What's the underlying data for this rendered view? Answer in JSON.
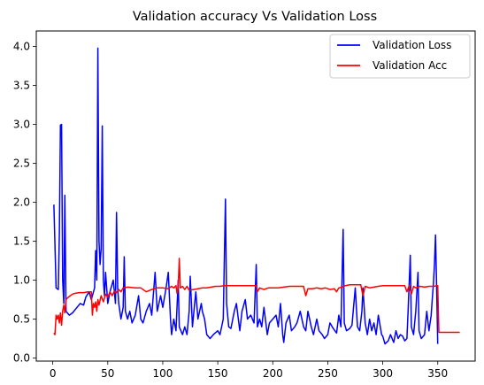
{
  "chart_data": {
    "type": "line",
    "title": "Validation accuracy Vs Validation Loss",
    "xlabel": "",
    "ylabel": "",
    "xlim": [
      -15,
      384
    ],
    "ylim": [
      -0.04,
      4.2
    ],
    "xticks": [
      0,
      50,
      100,
      150,
      200,
      250,
      300,
      350
    ],
    "xtick_labels": [
      "0",
      "50",
      "100",
      "150",
      "200",
      "250",
      "300",
      "350"
    ],
    "yticks": [
      0.0,
      0.5,
      1.0,
      1.5,
      2.0,
      2.5,
      3.0,
      3.5,
      4.0
    ],
    "ytick_labels": [
      "0.0",
      "0.5",
      "1.0",
      "1.5",
      "2.0",
      "2.5",
      "3.0",
      "3.5",
      "4.0"
    ],
    "grid": false,
    "legend_position": "top-right",
    "series": [
      {
        "name": "Validation Loss",
        "color": "#0000ff",
        "points": [
          [
            1,
            1.97
          ],
          [
            3,
            0.9
          ],
          [
            5,
            0.88
          ],
          [
            6,
            1.6
          ],
          [
            7,
            2.99
          ],
          [
            8,
            3.0
          ],
          [
            9,
            1.0
          ],
          [
            10,
            0.7
          ],
          [
            11,
            2.09
          ],
          [
            12,
            0.6
          ],
          [
            15,
            0.55
          ],
          [
            18,
            0.58
          ],
          [
            22,
            0.65
          ],
          [
            25,
            0.7
          ],
          [
            28,
            0.68
          ],
          [
            30,
            0.78
          ],
          [
            33,
            0.85
          ],
          [
            35,
            0.75
          ],
          [
            38,
            0.9
          ],
          [
            39,
            1.38
          ],
          [
            40,
            1.0
          ],
          [
            41,
            3.98
          ],
          [
            42,
            1.5
          ],
          [
            43,
            1.2
          ],
          [
            44,
            1.4
          ],
          [
            45,
            2.98
          ],
          [
            46,
            1.0
          ],
          [
            47,
            0.8
          ],
          [
            48,
            1.1
          ],
          [
            50,
            0.7
          ],
          [
            52,
            0.85
          ],
          [
            55,
            1.0
          ],
          [
            57,
            0.7
          ],
          [
            58,
            1.87
          ],
          [
            59,
            0.9
          ],
          [
            60,
            0.7
          ],
          [
            62,
            0.5
          ],
          [
            64,
            0.65
          ],
          [
            65,
            1.3
          ],
          [
            66,
            0.6
          ],
          [
            68,
            0.5
          ],
          [
            70,
            0.6
          ],
          [
            72,
            0.45
          ],
          [
            75,
            0.55
          ],
          [
            78,
            0.8
          ],
          [
            80,
            0.5
          ],
          [
            82,
            0.45
          ],
          [
            85,
            0.6
          ],
          [
            88,
            0.7
          ],
          [
            90,
            0.55
          ],
          [
            93,
            1.1
          ],
          [
            95,
            0.6
          ],
          [
            98,
            0.8
          ],
          [
            100,
            0.65
          ],
          [
            103,
            0.9
          ],
          [
            105,
            1.1
          ],
          [
            107,
            0.5
          ],
          [
            108,
            0.3
          ],
          [
            110,
            0.5
          ],
          [
            112,
            0.35
          ],
          [
            114,
            1.0
          ],
          [
            115,
            0.4
          ],
          [
            118,
            0.3
          ],
          [
            120,
            0.4
          ],
          [
            122,
            0.3
          ],
          [
            124,
            0.6
          ],
          [
            125,
            1.05
          ],
          [
            127,
            0.4
          ],
          [
            129,
            0.7
          ],
          [
            130,
            0.85
          ],
          [
            132,
            0.5
          ],
          [
            135,
            0.7
          ],
          [
            136,
            0.6
          ],
          [
            138,
            0.5
          ],
          [
            140,
            0.3
          ],
          [
            143,
            0.25
          ],
          [
            146,
            0.3
          ],
          [
            150,
            0.35
          ],
          [
            152,
            0.3
          ],
          [
            155,
            0.5
          ],
          [
            157,
            2.04
          ],
          [
            158,
            0.7
          ],
          [
            160,
            0.4
          ],
          [
            162,
            0.38
          ],
          [
            165,
            0.6
          ],
          [
            167,
            0.7
          ],
          [
            170,
            0.35
          ],
          [
            172,
            0.6
          ],
          [
            175,
            0.75
          ],
          [
            177,
            0.5
          ],
          [
            180,
            0.55
          ],
          [
            183,
            0.45
          ],
          [
            185,
            1.2
          ],
          [
            186,
            0.4
          ],
          [
            188,
            0.5
          ],
          [
            190,
            0.4
          ],
          [
            192,
            0.65
          ],
          [
            195,
            0.3
          ],
          [
            197,
            0.45
          ],
          [
            200,
            0.5
          ],
          [
            203,
            0.55
          ],
          [
            205,
            0.4
          ],
          [
            207,
            0.7
          ],
          [
            209,
            0.3
          ],
          [
            210,
            0.2
          ],
          [
            212,
            0.45
          ],
          [
            215,
            0.55
          ],
          [
            217,
            0.35
          ],
          [
            220,
            0.4
          ],
          [
            222,
            0.45
          ],
          [
            225,
            0.6
          ],
          [
            228,
            0.4
          ],
          [
            230,
            0.35
          ],
          [
            232,
            0.6
          ],
          [
            235,
            0.4
          ],
          [
            237,
            0.3
          ],
          [
            240,
            0.5
          ],
          [
            242,
            0.35
          ],
          [
            245,
            0.3
          ],
          [
            247,
            0.25
          ],
          [
            250,
            0.3
          ],
          [
            252,
            0.45
          ],
          [
            255,
            0.38
          ],
          [
            258,
            0.32
          ],
          [
            260,
            0.55
          ],
          [
            262,
            0.4
          ],
          [
            264,
            1.65
          ],
          [
            265,
            0.45
          ],
          [
            267,
            0.35
          ],
          [
            270,
            0.38
          ],
          [
            272,
            0.42
          ],
          [
            275,
            0.9
          ],
          [
            277,
            0.4
          ],
          [
            279,
            0.35
          ],
          [
            281,
            0.6
          ],
          [
            282,
            0.9
          ],
          [
            284,
            0.45
          ],
          [
            286,
            0.3
          ],
          [
            288,
            0.5
          ],
          [
            290,
            0.35
          ],
          [
            292,
            0.45
          ],
          [
            294,
            0.3
          ],
          [
            296,
            0.55
          ],
          [
            299,
            0.3
          ],
          [
            300,
            0.28
          ],
          [
            302,
            0.18
          ],
          [
            305,
            0.22
          ],
          [
            307,
            0.3
          ],
          [
            310,
            0.2
          ],
          [
            312,
            0.35
          ],
          [
            314,
            0.25
          ],
          [
            316,
            0.3
          ],
          [
            318,
            0.28
          ],
          [
            320,
            0.22
          ],
          [
            322,
            0.25
          ],
          [
            323,
            0.6
          ],
          [
            325,
            1.32
          ],
          [
            326,
            0.4
          ],
          [
            328,
            0.3
          ],
          [
            330,
            0.6
          ],
          [
            332,
            1.1
          ],
          [
            333,
            0.35
          ],
          [
            335,
            0.25
          ],
          [
            338,
            0.3
          ],
          [
            340,
            0.6
          ],
          [
            342,
            0.35
          ],
          [
            344,
            0.55
          ],
          [
            345,
            0.75
          ],
          [
            346,
            0.95
          ],
          [
            347,
            1.2
          ],
          [
            348,
            1.58
          ],
          [
            349,
            0.9
          ],
          [
            350,
            0.18
          ]
        ]
      },
      {
        "name": "Validation Acc",
        "color": "#ff0000",
        "points": [
          [
            1,
            0.32
          ],
          [
            2,
            0.3
          ],
          [
            3,
            0.55
          ],
          [
            4,
            0.5
          ],
          [
            5,
            0.55
          ],
          [
            6,
            0.45
          ],
          [
            7,
            0.58
          ],
          [
            8,
            0.42
          ],
          [
            9,
            0.6
          ],
          [
            10,
            0.68
          ],
          [
            11,
            0.58
          ],
          [
            12,
            0.75
          ],
          [
            14,
            0.78
          ],
          [
            16,
            0.8
          ],
          [
            18,
            0.82
          ],
          [
            20,
            0.83
          ],
          [
            24,
            0.84
          ],
          [
            28,
            0.84
          ],
          [
            32,
            0.85
          ],
          [
            35,
            0.85
          ],
          [
            36,
            0.55
          ],
          [
            37,
            0.7
          ],
          [
            38,
            0.65
          ],
          [
            39,
            0.72
          ],
          [
            40,
            0.6
          ],
          [
            41,
            0.75
          ],
          [
            42,
            0.68
          ],
          [
            44,
            0.8
          ],
          [
            46,
            0.72
          ],
          [
            48,
            0.82
          ],
          [
            50,
            0.78
          ],
          [
            52,
            0.85
          ],
          [
            54,
            0.8
          ],
          [
            56,
            0.86
          ],
          [
            58,
            0.84
          ],
          [
            60,
            0.88
          ],
          [
            62,
            0.85
          ],
          [
            64,
            0.9
          ],
          [
            68,
            0.91
          ],
          [
            75,
            0.9
          ],
          [
            80,
            0.9
          ],
          [
            85,
            0.85
          ],
          [
            90,
            0.88
          ],
          [
            95,
            0.9
          ],
          [
            100,
            0.9
          ],
          [
            105,
            0.89
          ],
          [
            108,
            0.92
          ],
          [
            110,
            0.9
          ],
          [
            112,
            0.93
          ],
          [
            113,
            0.83
          ],
          [
            114,
            0.9
          ],
          [
            115,
            1.28
          ],
          [
            116,
            0.9
          ],
          [
            118,
            0.92
          ],
          [
            120,
            0.88
          ],
          [
            122,
            0.92
          ],
          [
            124,
            0.87
          ],
          [
            128,
            0.88
          ],
          [
            132,
            0.89
          ],
          [
            136,
            0.9
          ],
          [
            140,
            0.9
          ],
          [
            144,
            0.91
          ],
          [
            148,
            0.92
          ],
          [
            152,
            0.92
          ],
          [
            156,
            0.93
          ],
          [
            160,
            0.93
          ],
          [
            165,
            0.93
          ],
          [
            170,
            0.93
          ],
          [
            175,
            0.93
          ],
          [
            180,
            0.93
          ],
          [
            185,
            0.93
          ],
          [
            186,
            0.85
          ],
          [
            188,
            0.9
          ],
          [
            192,
            0.88
          ],
          [
            196,
            0.9
          ],
          [
            200,
            0.9
          ],
          [
            205,
            0.9
          ],
          [
            210,
            0.91
          ],
          [
            215,
            0.92
          ],
          [
            220,
            0.92
          ],
          [
            225,
            0.92
          ],
          [
            228,
            0.92
          ],
          [
            230,
            0.8
          ],
          [
            232,
            0.89
          ],
          [
            236,
            0.89
          ],
          [
            240,
            0.9
          ],
          [
            244,
            0.89
          ],
          [
            248,
            0.9
          ],
          [
            252,
            0.88
          ],
          [
            256,
            0.89
          ],
          [
            258,
            0.85
          ],
          [
            260,
            0.9
          ],
          [
            263,
            0.91
          ],
          [
            266,
            0.93
          ],
          [
            270,
            0.94
          ],
          [
            276,
            0.94
          ],
          [
            280,
            0.94
          ],
          [
            282,
            0.8
          ],
          [
            284,
            0.92
          ],
          [
            288,
            0.9
          ],
          [
            292,
            0.91
          ],
          [
            296,
            0.92
          ],
          [
            300,
            0.93
          ],
          [
            305,
            0.93
          ],
          [
            310,
            0.93
          ],
          [
            316,
            0.93
          ],
          [
            320,
            0.93
          ],
          [
            322,
            0.85
          ],
          [
            324,
            0.93
          ],
          [
            326,
            0.82
          ],
          [
            328,
            0.92
          ],
          [
            330,
            0.9
          ],
          [
            334,
            0.92
          ],
          [
            338,
            0.91
          ],
          [
            342,
            0.92
          ],
          [
            346,
            0.92
          ],
          [
            350,
            0.93
          ],
          [
            351,
            0.33
          ],
          [
            360,
            0.33
          ],
          [
            370,
            0.33
          ]
        ]
      }
    ]
  }
}
